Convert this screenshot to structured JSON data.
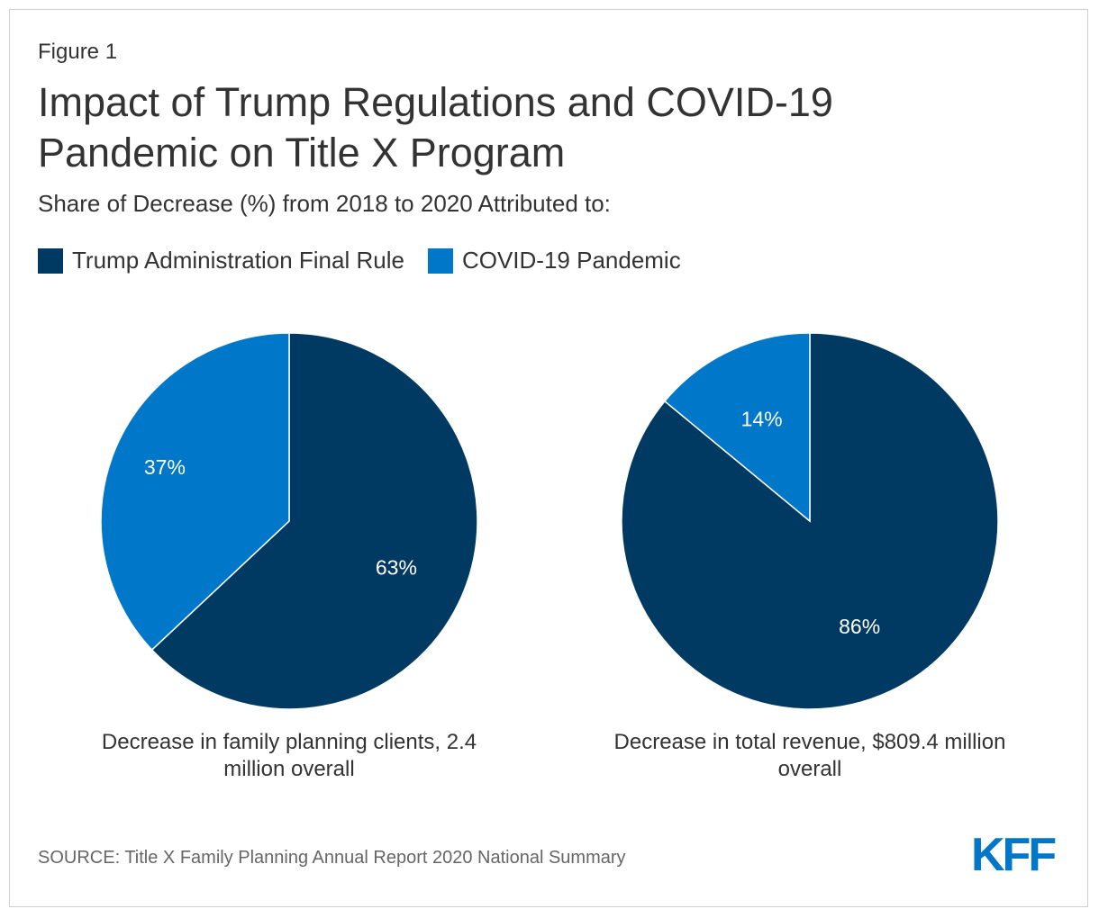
{
  "figure_label": "Figure 1",
  "title_line1": "Impact of Trump Regulations and COVID-19",
  "title_line2": "Pandemic on Title X Program",
  "subtitle": "Share of Decrease (%) from 2018 to 2020 Attributed to:",
  "legend": [
    {
      "label": "Trump Administration Final Rule",
      "color": "#003a63"
    },
    {
      "label": "COVID-19 Pandemic",
      "color": "#0077c8"
    }
  ],
  "chart_data": [
    {
      "type": "pie",
      "caption_line1": "Decrease in family planning clients, 2.4",
      "caption_line2": "million overall",
      "slices": [
        {
          "label": "Trump Administration Final Rule",
          "value": 63,
          "display": "63%",
          "color": "#003a63"
        },
        {
          "label": "COVID-19 Pandemic",
          "value": 37,
          "display": "37%",
          "color": "#0077c8"
        }
      ]
    },
    {
      "type": "pie",
      "caption_line1": "Decrease in total revenue, $809.4 million",
      "caption_line2": "overall",
      "slices": [
        {
          "label": "Trump Administration Final Rule",
          "value": 86,
          "display": "86%",
          "color": "#003a63"
        },
        {
          "label": "COVID-19 Pandemic",
          "value": 14,
          "display": "14%",
          "color": "#0077c8"
        }
      ]
    }
  ],
  "source": "SOURCE: Title X Family Planning Annual Report 2020 National Summary",
  "logo_text": "KFF",
  "logo_color": "#0077c8"
}
